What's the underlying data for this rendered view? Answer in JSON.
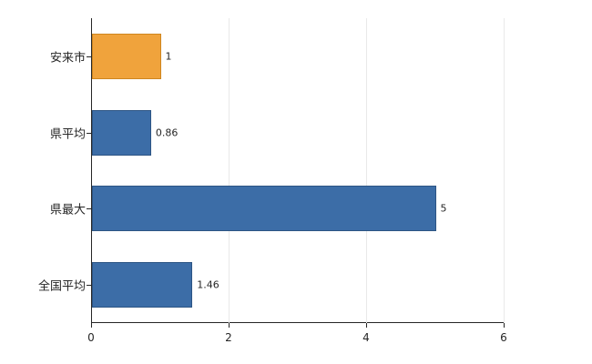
{
  "chart_data": {
    "type": "bar",
    "orientation": "horizontal",
    "title": "",
    "xlabel": "",
    "ylabel": "",
    "categories": [
      "安来市",
      "県平均",
      "県最大",
      "全国平均"
    ],
    "values": [
      1,
      0.86,
      5,
      1.46
    ],
    "value_labels": [
      "1",
      "0.86",
      "5",
      "1.46"
    ],
    "bar_colors": [
      "#f0a33c",
      "#3c6da7",
      "#3c6da7",
      "#3c6da7"
    ],
    "bar_border_colors": [
      "#cf861f",
      "#2d5584",
      "#2d5584",
      "#2d5584"
    ],
    "xlim": [
      0,
      6
    ],
    "x_ticks": [
      0,
      2,
      4,
      6
    ],
    "x_tick_labels": [
      "0",
      "2",
      "4",
      "6"
    ],
    "grid": true,
    "legend": "none",
    "axis_color": "#262626",
    "grid_color": "#e9e9e9"
  }
}
